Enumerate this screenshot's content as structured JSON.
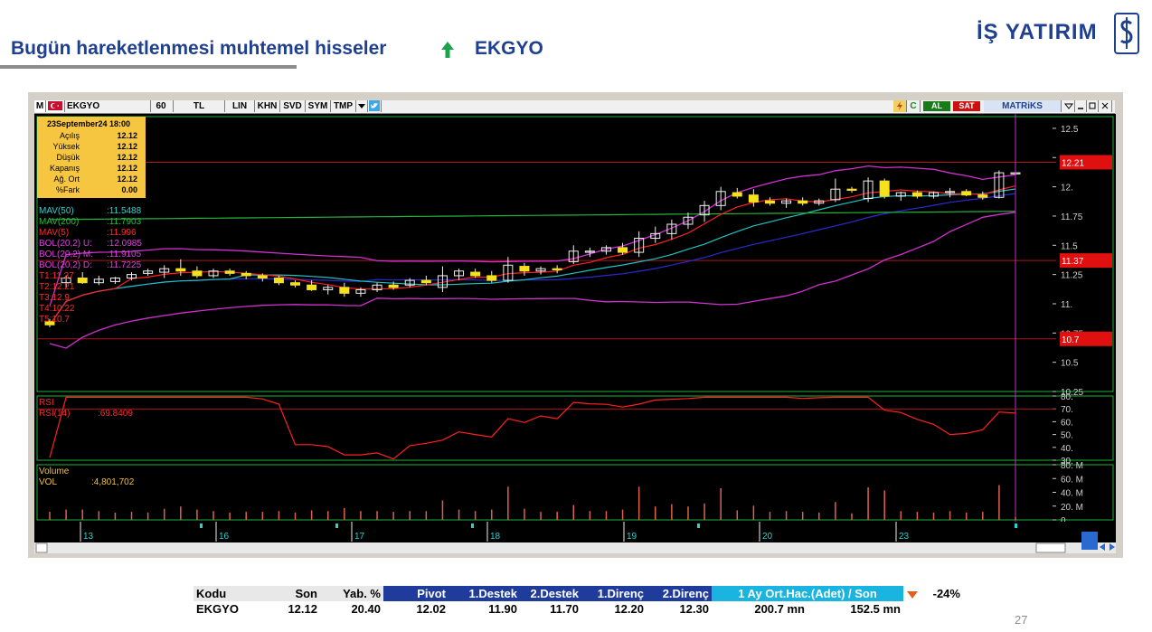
{
  "header": {
    "title": "Bugün hareketlenmesi muhtemel hisseler",
    "ticker": "EKGYO",
    "brand": "İŞ YATIRIM",
    "page_number": "27",
    "arrow_color": "#1aa34a",
    "title_color": "#1f3f8f"
  },
  "toolbar": {
    "m": "M",
    "symbol": "EKGYO",
    "period": "60",
    "currency": "TL",
    "buttons": [
      "LIN",
      "KHN",
      "SVD",
      "SYM",
      "TMP"
    ],
    "al": "AL",
    "sat": "SAT",
    "matriks": "MATRiKS",
    "c": "C"
  },
  "info_box": {
    "date": "23September24 18:00",
    "rows": [
      {
        "label": "Açılış",
        "value": "12.12"
      },
      {
        "label": "Yüksek",
        "value": "12.12"
      },
      {
        "label": "Düşük",
        "value": "12.12"
      },
      {
        "label": "Kapanış",
        "value": "12.12"
      },
      {
        "label": "Ağ. Ort",
        "value": "12.12"
      },
      {
        "label": "%Fark",
        "value": "0.00"
      }
    ]
  },
  "indicators": [
    {
      "label": "MAV(50)",
      "value": ":11.5488",
      "color": "#2ad3d3"
    },
    {
      "label": "MAV(200)",
      "value": ":11.7903",
      "color": "#22c03a"
    },
    {
      "label": "MAV(5)",
      "value": ":11.996",
      "color": "#ff2a2a"
    },
    {
      "label": "BOL(20,2) U:",
      "value": ":12.0985",
      "color": "#e040e0"
    },
    {
      "label": "BOL(20,2) M:",
      "value": ":11.9105",
      "color": "#e040e0"
    },
    {
      "label": "BOL(20,2) D:",
      "value": ":11.7225",
      "color": "#e040e0"
    }
  ],
  "targets": [
    "T1:11.37",
    "T2:12.21",
    "T3:12.9",
    "T4:10.22",
    "T5:10.7"
  ],
  "chart_data": {
    "type": "candlestick",
    "price_axis": {
      "range": [
        10.25,
        12.6
      ],
      "ticks": [
        "12.5",
        "12.25",
        "12.",
        "11.75",
        "11.5",
        "11.25",
        "11.",
        "10.75",
        "10.5",
        "10.25"
      ]
    },
    "horizontal_levels": [
      {
        "value": 12.21,
        "label": "12.21"
      },
      {
        "value": 11.37,
        "label": "11.37"
      },
      {
        "value": 10.7,
        "label": "10.7"
      }
    ],
    "x_labels": [
      "13",
      "16",
      "17",
      "18",
      "19",
      "20",
      "23"
    ],
    "candles": [
      {
        "o": 10.85,
        "h": 10.87,
        "l": 10.8,
        "c": 10.82
      },
      {
        "o": 11.18,
        "h": 11.24,
        "l": 11.14,
        "c": 11.22
      },
      {
        "o": 11.22,
        "h": 11.27,
        "l": 11.17,
        "c": 11.18
      },
      {
        "o": 11.18,
        "h": 11.24,
        "l": 11.16,
        "c": 11.21
      },
      {
        "o": 11.19,
        "h": 11.23,
        "l": 11.17,
        "c": 11.22
      },
      {
        "o": 11.22,
        "h": 11.27,
        "l": 11.2,
        "c": 11.25
      },
      {
        "o": 11.26,
        "h": 11.3,
        "l": 11.24,
        "c": 11.28
      },
      {
        "o": 11.27,
        "h": 11.33,
        "l": 11.22,
        "c": 11.3
      },
      {
        "o": 11.3,
        "h": 11.38,
        "l": 11.24,
        "c": 11.28
      },
      {
        "o": 11.28,
        "h": 11.32,
        "l": 11.22,
        "c": 11.24
      },
      {
        "o": 11.24,
        "h": 11.3,
        "l": 11.22,
        "c": 11.28
      },
      {
        "o": 11.28,
        "h": 11.3,
        "l": 11.24,
        "c": 11.26
      },
      {
        "o": 11.26,
        "h": 11.28,
        "l": 11.21,
        "c": 11.24
      },
      {
        "o": 11.24,
        "h": 11.26,
        "l": 11.19,
        "c": 11.22
      },
      {
        "o": 11.22,
        "h": 11.24,
        "l": 11.16,
        "c": 11.18
      },
      {
        "o": 11.18,
        "h": 11.2,
        "l": 11.14,
        "c": 11.16
      },
      {
        "o": 11.16,
        "h": 11.2,
        "l": 11.11,
        "c": 11.12
      },
      {
        "o": 11.12,
        "h": 11.16,
        "l": 11.08,
        "c": 11.14
      },
      {
        "o": 11.14,
        "h": 11.18,
        "l": 11.06,
        "c": 11.09
      },
      {
        "o": 11.09,
        "h": 11.14,
        "l": 11.06,
        "c": 11.12
      },
      {
        "o": 11.12,
        "h": 11.18,
        "l": 11.1,
        "c": 11.16
      },
      {
        "o": 11.16,
        "h": 11.19,
        "l": 11.12,
        "c": 11.14
      },
      {
        "o": 11.16,
        "h": 11.22,
        "l": 11.14,
        "c": 11.2
      },
      {
        "o": 11.2,
        "h": 11.24,
        "l": 11.16,
        "c": 11.18
      },
      {
        "o": 11.14,
        "h": 11.32,
        "l": 11.1,
        "c": 11.24
      },
      {
        "o": 11.24,
        "h": 11.3,
        "l": 11.2,
        "c": 11.28
      },
      {
        "o": 11.27,
        "h": 11.3,
        "l": 11.22,
        "c": 11.24
      },
      {
        "o": 11.24,
        "h": 11.28,
        "l": 11.18,
        "c": 11.2
      },
      {
        "o": 11.2,
        "h": 11.4,
        "l": 11.18,
        "c": 11.33
      },
      {
        "o": 11.32,
        "h": 11.35,
        "l": 11.24,
        "c": 11.28
      },
      {
        "o": 11.28,
        "h": 11.32,
        "l": 11.25,
        "c": 11.3
      },
      {
        "o": 11.3,
        "h": 11.33,
        "l": 11.26,
        "c": 11.29
      },
      {
        "o": 11.36,
        "h": 11.5,
        "l": 11.34,
        "c": 11.45
      },
      {
        "o": 11.44,
        "h": 11.48,
        "l": 11.4,
        "c": 11.45
      },
      {
        "o": 11.45,
        "h": 11.5,
        "l": 11.42,
        "c": 11.48
      },
      {
        "o": 11.48,
        "h": 11.52,
        "l": 11.42,
        "c": 11.44
      },
      {
        "o": 11.44,
        "h": 11.62,
        "l": 11.4,
        "c": 11.56
      },
      {
        "o": 11.56,
        "h": 11.66,
        "l": 11.52,
        "c": 11.6
      },
      {
        "o": 11.6,
        "h": 11.72,
        "l": 11.55,
        "c": 11.68
      },
      {
        "o": 11.68,
        "h": 11.78,
        "l": 11.64,
        "c": 11.74
      },
      {
        "o": 11.76,
        "h": 11.88,
        "l": 11.7,
        "c": 11.84
      },
      {
        "o": 11.84,
        "h": 12.0,
        "l": 11.8,
        "c": 11.96
      },
      {
        "o": 11.95,
        "h": 11.99,
        "l": 11.9,
        "c": 11.92
      },
      {
        "o": 11.93,
        "h": 11.98,
        "l": 11.83,
        "c": 11.87
      },
      {
        "o": 11.88,
        "h": 11.91,
        "l": 11.84,
        "c": 11.86
      },
      {
        "o": 11.86,
        "h": 11.9,
        "l": 11.82,
        "c": 11.88
      },
      {
        "o": 11.88,
        "h": 11.91,
        "l": 11.84,
        "c": 11.86
      },
      {
        "o": 11.86,
        "h": 11.9,
        "l": 11.84,
        "c": 11.88
      },
      {
        "o": 11.89,
        "h": 12.07,
        "l": 11.87,
        "c": 11.98
      },
      {
        "o": 11.98,
        "h": 12.0,
        "l": 11.95,
        "c": 11.97
      },
      {
        "o": 11.9,
        "h": 12.08,
        "l": 11.87,
        "c": 12.05
      },
      {
        "o": 12.05,
        "h": 12.07,
        "l": 11.9,
        "c": 11.92
      },
      {
        "o": 11.92,
        "h": 11.96,
        "l": 11.88,
        "c": 11.95
      },
      {
        "o": 11.95,
        "h": 11.97,
        "l": 11.9,
        "c": 11.92
      },
      {
        "o": 11.92,
        "h": 11.96,
        "l": 11.9,
        "c": 11.95
      },
      {
        "o": 11.95,
        "h": 11.99,
        "l": 11.91,
        "c": 11.96
      },
      {
        "o": 11.96,
        "h": 11.98,
        "l": 11.92,
        "c": 11.93
      },
      {
        "o": 11.93,
        "h": 11.96,
        "l": 11.89,
        "c": 11.91
      },
      {
        "o": 11.91,
        "h": 12.14,
        "l": 11.9,
        "c": 12.12
      },
      {
        "o": 12.12,
        "h": 12.12,
        "l": 12.12,
        "c": 12.12
      }
    ],
    "rsi": {
      "label": "RSI",
      "series_label": "RSI(14)",
      "value": ":69.8409",
      "ticks": [
        "80.",
        "70.",
        "60.",
        "50.",
        "40.",
        "30."
      ],
      "range": [
        30,
        80
      ]
    },
    "volume": {
      "label": "Volume",
      "series_label": "VOL",
      "value": ":4,801,702",
      "ticks": [
        "80. M",
        "60. M",
        "40. M",
        "20. M",
        "0"
      ],
      "range": [
        0,
        80
      ]
    }
  },
  "bottom_table": {
    "headers": [
      "Kodu",
      "Son",
      "Yab. %",
      "Pivot",
      "1.Destek",
      "2.Destek",
      "1.Direnç",
      "2.Direnç",
      "1 Ay Ort.Hac.(Adet)  /  Son",
      "-24%"
    ],
    "row": [
      "EKGYO",
      "12.12",
      "20.40",
      "12.02",
      "11.90",
      "11.70",
      "12.20",
      "12.30",
      "200.7 mn",
      "152.5 mn"
    ]
  }
}
